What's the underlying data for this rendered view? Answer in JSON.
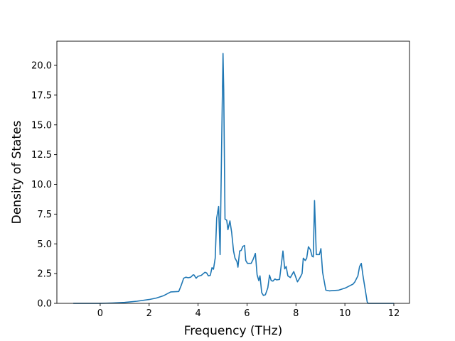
{
  "chart_data": {
    "type": "line",
    "title": "",
    "xlabel": "Frequency (THz)",
    "ylabel": "Density of States",
    "xlim": [
      -1.77,
      12.64
    ],
    "ylim": [
      0,
      22.03
    ],
    "xticks": [
      0,
      2,
      4,
      6,
      8,
      10,
      12
    ],
    "xtick_labels": [
      "0",
      "2",
      "4",
      "6",
      "8",
      "10",
      "12"
    ],
    "yticks": [
      0,
      2.5,
      5,
      7.5,
      10,
      12.5,
      15,
      17.5,
      20
    ],
    "ytick_labels": [
      "0.0",
      "2.5",
      "5.0",
      "7.5",
      "10.0",
      "12.5",
      "15.0",
      "17.5",
      "20.0"
    ],
    "grid": false,
    "color": "#1f77b4",
    "series": [
      {
        "name": "DOS",
        "x": [
          -1.1,
          0,
          0.5,
          1,
          1.5,
          2,
          2.3,
          2.6,
          2.88,
          3.21,
          3.31,
          3.41,
          3.5,
          3.6,
          3.7,
          3.8,
          3.84,
          3.92,
          3.99,
          4.13,
          4.28,
          4.35,
          4.42,
          4.5,
          4.57,
          4.63,
          4.7,
          4.76,
          4.84,
          4.9,
          4.97,
          5.02,
          5.05,
          5.1,
          5.17,
          5.22,
          5.3,
          5.37,
          5.45,
          5.51,
          5.59,
          5.63,
          5.7,
          5.76,
          5.83,
          5.9,
          5.95,
          6.02,
          6.17,
          6.25,
          6.34,
          6.41,
          6.48,
          6.53,
          6.6,
          6.67,
          6.75,
          6.85,
          6.92,
          6.99,
          7.06,
          7.14,
          7.21,
          7.33,
          7.47,
          7.54,
          7.6,
          7.67,
          7.77,
          7.91,
          8.06,
          8.15,
          8.25,
          8.3,
          8.38,
          8.44,
          8.51,
          8.59,
          8.66,
          8.71,
          8.76,
          8.83,
          8.96,
          9.02,
          9.09,
          9.22,
          9.36,
          9.75,
          10.04,
          10.23,
          10.33,
          10.41,
          10.53,
          10.6,
          10.67,
          10.74,
          10.91,
          10.95,
          12
        ],
        "y": [
          0,
          0,
          0.03,
          0.08,
          0.18,
          0.32,
          0.45,
          0.65,
          0.96,
          1.0,
          1.51,
          2.11,
          2.2,
          2.15,
          2.2,
          2.4,
          2.37,
          2.11,
          2.27,
          2.35,
          2.61,
          2.55,
          2.31,
          2.35,
          3.0,
          2.87,
          3.8,
          7.18,
          8.14,
          4.1,
          14.35,
          21.0,
          17.9,
          7.08,
          6.99,
          6.19,
          6.93,
          5.99,
          4.4,
          3.8,
          3.5,
          3.04,
          4.4,
          4.44,
          4.79,
          4.86,
          3.6,
          3.36,
          3.36,
          3.7,
          4.2,
          2.41,
          1.91,
          2.31,
          0.91,
          0.66,
          0.72,
          1.31,
          2.37,
          1.91,
          1.87,
          2.05,
          1.97,
          2.01,
          4.4,
          2.9,
          3.1,
          2.31,
          2.17,
          2.67,
          1.81,
          2.11,
          2.5,
          3.8,
          3.6,
          3.8,
          4.76,
          4.5,
          3.96,
          3.9,
          8.64,
          4.1,
          4.1,
          4.6,
          2.6,
          1.11,
          1.05,
          1.11,
          1.31,
          1.51,
          1.61,
          1.81,
          2.31,
          3.1,
          3.36,
          2.31,
          0.12,
          0,
          0
        ]
      }
    ]
  }
}
